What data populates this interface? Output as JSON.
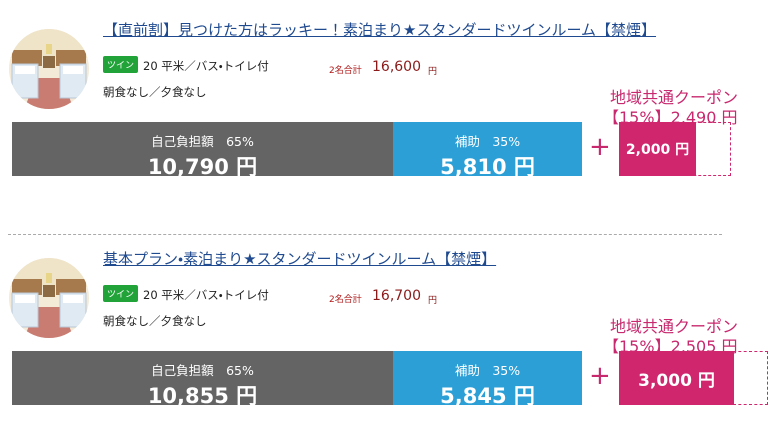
{
  "plans": [
    {
      "title": "【直前割】見つけた方はラッキー！素泊まり★スタンダードツインルーム【禁煙】",
      "badge": "ツイン",
      "room": "20 平米／バス・トイレ付",
      "total_label": "2名合計",
      "total": "16,600",
      "total_unit": "円",
      "meals": "朝食なし／夕食なし",
      "coupon_title": "地域共通クーポン",
      "coupon_detail": "【15%】2,490 円",
      "self_label": "自己負担額　65%",
      "self_amount": "10,790 円",
      "subsidy_label": "補助　35%",
      "subsidy_amount": "5,810 円",
      "plus": "+",
      "coupon_amount": "2,000 円"
    },
    {
      "title": "基本プラン・素泊まり★スタンダードツインルーム【禁煙】",
      "badge": "ツイン",
      "room": "20 平米／バス・トイレ付",
      "total_label": "2名合計",
      "total": "16,700",
      "total_unit": "円",
      "meals": "朝食なし／夕食なし",
      "coupon_title": "地域共通クーポン",
      "coupon_detail": "【15%】2,505 円",
      "self_label": "自己負担額　65%",
      "self_amount": "10,855 円",
      "subsidy_label": "補助　35%",
      "subsidy_amount": "5,845 円",
      "plus": "+",
      "coupon_amount": "3,000 円"
    }
  ]
}
